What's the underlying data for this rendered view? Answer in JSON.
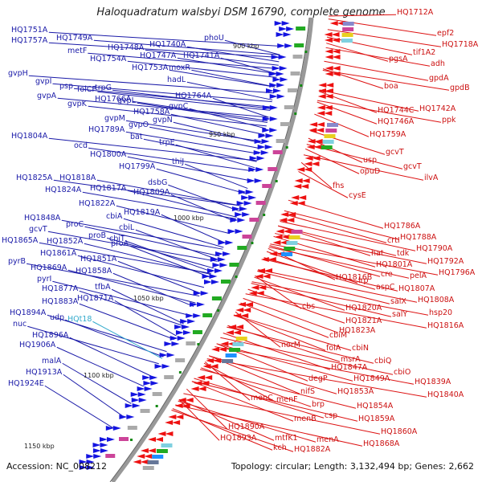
{
  "title": "Haloquadratum walsbyi DSM 16790, complete genome",
  "footer": {
    "accession": "Accession: NC_008212",
    "summary": "Topology: circular; Length: 3,132,494 bp; Genes: 2,662"
  },
  "ticks": [
    "900 kbp",
    "950 kbp",
    "1000 kbp",
    "1050 kbp",
    "1100 kbp",
    "1150 kbp"
  ],
  "labels_left": [
    "HQ1751A",
    "HQ1757A",
    "HQ1749A",
    "metF",
    "HQ1748A",
    "HQ1754A",
    "HQ1740A",
    "HQ1747A",
    "HQ1741A",
    "HQ1753A",
    "moxR",
    "phoU",
    "hadL",
    "gvpH",
    "gvpI",
    "psp",
    "folCP",
    "trpG",
    "gvpA",
    "gvpK",
    "HQ1766A",
    "gvpL",
    "HQ1758A",
    "HQ1764A",
    "gvpC",
    "gvpM",
    "gvpN",
    "gvpO",
    "HQ1804A",
    "ocd",
    "HQ1789A",
    "bat",
    "trpE",
    "HQ1800A",
    "thiJ",
    "HQ1799A",
    "HQ1825A",
    "HQ1818A",
    "HQ1824A",
    "HQ1817A",
    "dsbG",
    "HQ1809A",
    "HQ1822A",
    "HQ1819A",
    "cbiA",
    "HQ1848A",
    "proC",
    "gcvT",
    "proB",
    "cbiL",
    "HQ1865A",
    "HQ1852A",
    "proA",
    "cbiT",
    "HQ1861A",
    "HQ1851A",
    "pyrB",
    "HQ1869A",
    "HQ1858A",
    "pyrI",
    "tfbA",
    "HQ1877A",
    "HQ1871A",
    "HQ1883A",
    "HQ1894A",
    "udp",
    "nuc",
    "HQ1896A",
    "HQ1906A",
    "malA",
    "HQ1913A",
    "HQ1924E"
  ],
  "labels_cyan": [
    "HQt18"
  ],
  "labels_right": [
    "HQ1712A",
    "epf2",
    "HQ1718A",
    "tif1A2",
    "pgsA",
    "adh",
    "gpdA",
    "gpdB",
    "boa",
    "HQ1744C",
    "HQ1742A",
    "ppk",
    "HQ1746A",
    "HQ1759A",
    "gcvT",
    "usp",
    "gcvT",
    "opuD",
    "ilvA",
    "fhs",
    "cysE",
    "HQ1786A",
    "HQ1788A",
    "crtI",
    "HQ1790A",
    "hat",
    "tdk",
    "HQ1792A",
    "HQ1801A",
    "HQ1796A",
    "cre",
    "pelA",
    "HQ1816B",
    "lrp",
    "aspC",
    "HQ1807A",
    "salX",
    "HQ1808A",
    "cbs",
    "HQ1820A",
    "salY",
    "hsp20",
    "HQ1821A",
    "HQ1816A",
    "HQ1823A",
    "cbiM",
    "folA",
    "cbiN",
    "msrA",
    "cbiQ",
    "norM",
    "HQ1847A",
    "cbiO",
    "HQ1849A",
    "HQ1839A",
    "HQ1853A",
    "HQ1840A",
    "nifS",
    "degP",
    "HQ1854A",
    "brp",
    "csp",
    "HQ1859A",
    "menC",
    "menF",
    "menB",
    "HQ1860A",
    "menA",
    "HQ1890A",
    "HQ1868A",
    "mtfK1",
    "HQ1893A",
    "HQ1882A",
    "kch"
  ]
}
